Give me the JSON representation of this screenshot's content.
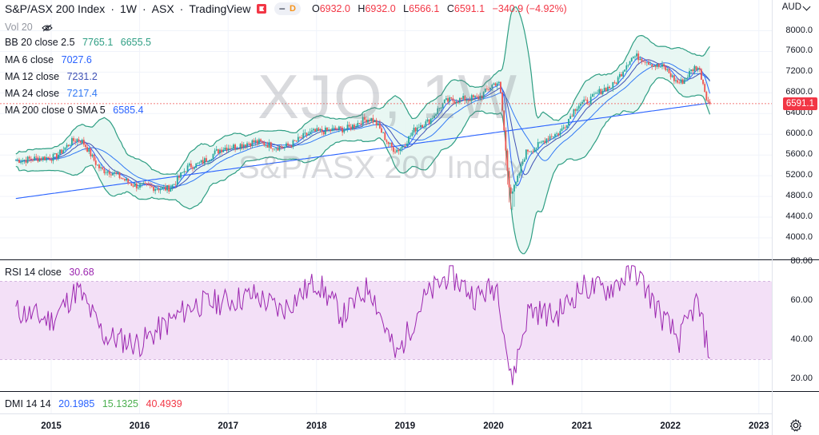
{
  "header": {
    "symbol": "S&P/ASX 200 Index",
    "interval": "1W",
    "exchange": "ASX",
    "provider": "TradingView",
    "pill_dash": "",
    "pill_label": "D",
    "ohlc": {
      "o_label": "O",
      "o": "6932.0",
      "h_label": "H",
      "h": "6932.0",
      "l_label": "L",
      "l": "6566.1",
      "c_label": "C",
      "c": "6591.1",
      "change": "−340.9 (−4.92%)"
    }
  },
  "currency": "AUD",
  "watermark": {
    "ticker": "XJO, 1W",
    "name": "S&P/ASX 200 Index"
  },
  "indicators": {
    "vol": {
      "label": "Vol 20"
    },
    "bb": {
      "label": "BB 20 close 2.5",
      "upper": "7765.1",
      "lower": "6655.5"
    },
    "ma6": {
      "label": "MA 6 close",
      "value": "7027.6"
    },
    "ma12": {
      "label": "MA 12 close",
      "value": "7231.2"
    },
    "ma24": {
      "label": "MA 24 close",
      "value": "7217.4"
    },
    "ma200": {
      "label": "MA 200 close 0 SMA 5",
      "value": "6585.4"
    },
    "rsi": {
      "label": "RSI 14 close",
      "value": "30.68"
    },
    "dmi": {
      "label": "DMI 14 14",
      "v1": "20.1985",
      "v2": "15.1325",
      "v3": "40.4939"
    }
  },
  "last_price": "6591.1",
  "colors": {
    "up": "#26a69a",
    "down": "#ef5350",
    "bb": "#2e9e83",
    "bb_fill": "#e6f6f2",
    "ma6": "#2962ff",
    "ma12": "#3f51b5",
    "ma24": "#3179f5",
    "ma200": "#2962ff",
    "rsi": "#9c27b0",
    "rsi_band": "#f3e0f7",
    "dmi1": "#2962ff",
    "dmi2": "#4caf50",
    "dmi3": "#f23645"
  },
  "price_axis": [
    "8000.0",
    "7600.0",
    "7200.0",
    "6800.0",
    "6400.0",
    "6000.0",
    "5600.0",
    "5200.0",
    "4800.0",
    "4400.0",
    "4000.0"
  ],
  "rsi_axis": [
    "80.00",
    "60.00",
    "40.00",
    "20.00"
  ],
  "time_axis": [
    "2015",
    "2016",
    "2017",
    "2018",
    "2019",
    "2020",
    "2021",
    "2022",
    "2023"
  ],
  "chart_data": {
    "type": "line",
    "title": "S&P/ASX 200 Index, 1W, ASX",
    "x": [
      2014.6,
      2015.0,
      2015.3,
      2015.6,
      2016.0,
      2016.3,
      2016.6,
      2017.0,
      2017.3,
      2017.6,
      2018.0,
      2018.3,
      2018.6,
      2018.9,
      2019.2,
      2019.5,
      2019.8,
      2020.05,
      2020.2,
      2020.4,
      2020.7,
      2021.0,
      2021.3,
      2021.6,
      2021.9,
      2022.1,
      2022.3,
      2022.45
    ],
    "series": [
      {
        "name": "Close",
        "values": [
          5500,
          5550,
          5900,
          5300,
          5000,
          4950,
          5400,
          5750,
          5850,
          5750,
          6050,
          6100,
          6300,
          5700,
          6200,
          6650,
          6700,
          7000,
          4900,
          5700,
          6000,
          6600,
          6900,
          7500,
          7300,
          7000,
          7300,
          6591
        ]
      }
    ],
    "ylim": [
      3800,
      8300
    ],
    "rsi": {
      "name": "RSI 14 close",
      "values": [
        55,
        50,
        66,
        42,
        38,
        48,
        58,
        60,
        63,
        55,
        70,
        52,
        68,
        31,
        60,
        74,
        62,
        68,
        18,
        56,
        52,
        67,
        66,
        76,
        52,
        40,
        60,
        30.68
      ],
      "ylim": [
        15,
        82
      ],
      "band": [
        30,
        70
      ]
    }
  }
}
